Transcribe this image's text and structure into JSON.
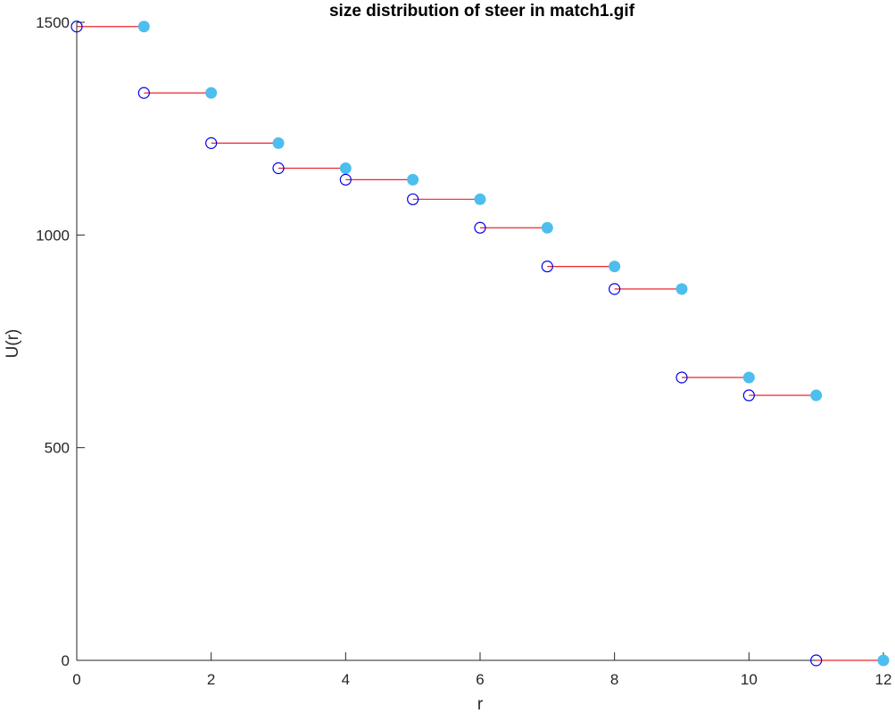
{
  "chart_data": {
    "type": "step",
    "title": "size distribution of steer in match1.gif",
    "xlabel": "r",
    "ylabel": "U(r)",
    "xlim": [
      0,
      12
    ],
    "ylim": [
      0,
      1500
    ],
    "xticks": [
      0,
      2,
      4,
      6,
      8,
      10,
      12
    ],
    "yticks": [
      0,
      500,
      1000,
      1500
    ],
    "grid": false,
    "legend": "none",
    "steps": [
      {
        "x0": 0,
        "x1": 1,
        "y": 1490
      },
      {
        "x0": 1,
        "x1": 2,
        "y": 1334
      },
      {
        "x0": 2,
        "x1": 3,
        "y": 1216
      },
      {
        "x0": 3,
        "x1": 4,
        "y": 1157
      },
      {
        "x0": 4,
        "x1": 5,
        "y": 1130
      },
      {
        "x0": 5,
        "x1": 6,
        "y": 1084
      },
      {
        "x0": 6,
        "x1": 7,
        "y": 1017
      },
      {
        "x0": 7,
        "x1": 8,
        "y": 926
      },
      {
        "x0": 8,
        "x1": 9,
        "y": 873
      },
      {
        "x0": 9,
        "x1": 10,
        "y": 665
      },
      {
        "x0": 10,
        "x1": 11,
        "y": 623
      },
      {
        "x0": 11,
        "x1": 12,
        "y": 0
      }
    ],
    "colors": {
      "segment": "#e8262f",
      "open_marker": "#0000e6",
      "filled_marker": "#4dbeee",
      "axis": "#262626"
    }
  }
}
